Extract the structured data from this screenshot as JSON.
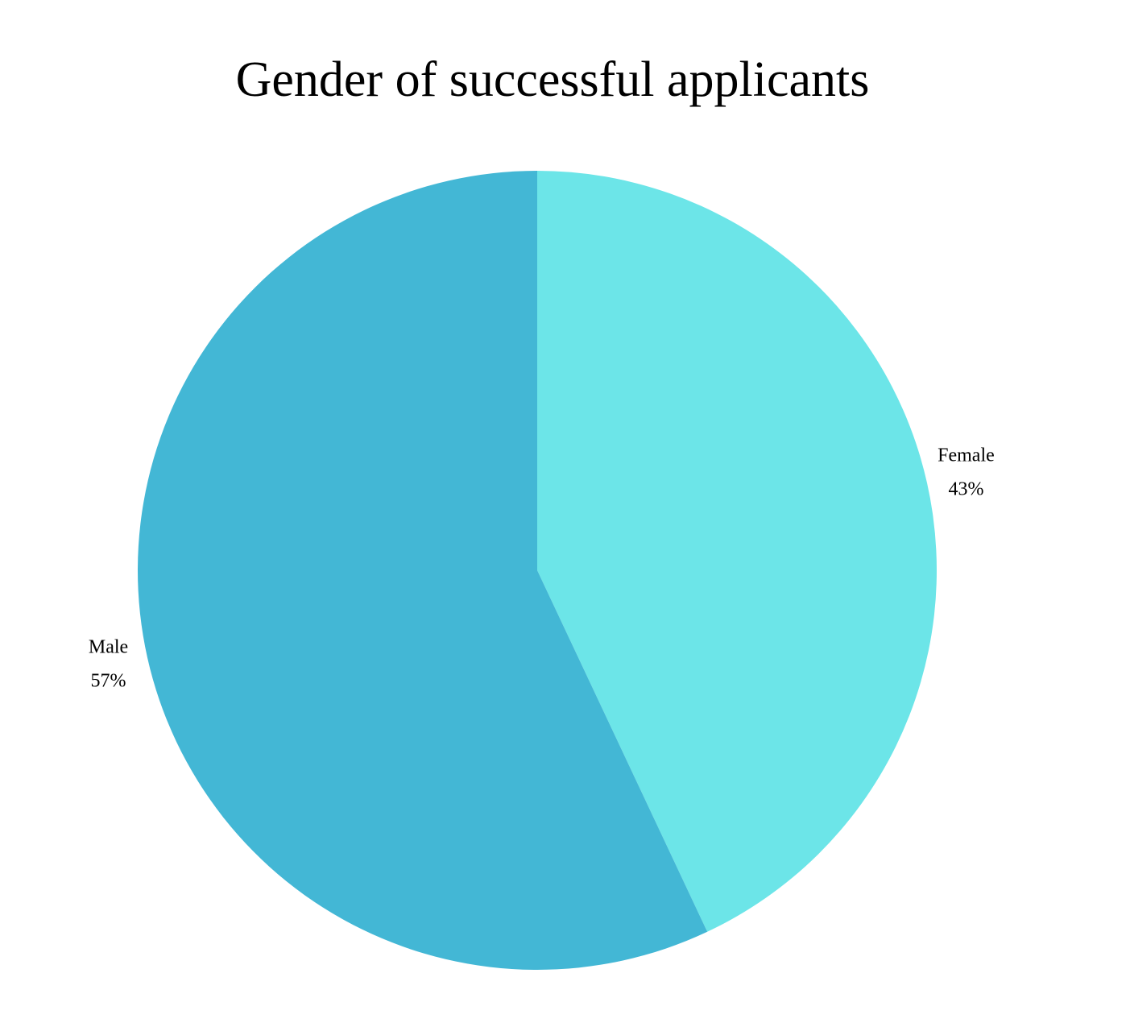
{
  "chart_data": {
    "type": "pie",
    "title": "Gender of successful applicants",
    "categories": [
      "Female",
      "Male"
    ],
    "values": [
      43,
      57
    ],
    "value_labels": [
      "43%",
      "57%"
    ],
    "colors": [
      "#6ce5e8",
      "#43b7d5"
    ]
  }
}
